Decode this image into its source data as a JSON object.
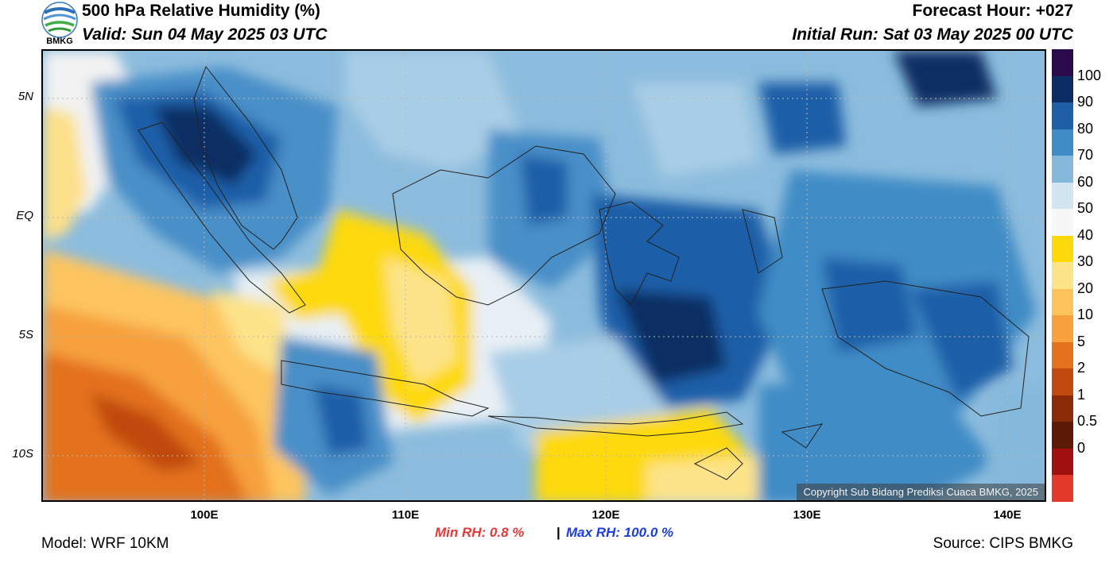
{
  "header": {
    "title": "500 hPa Relative Humidity (%)",
    "valid": "Valid: Sun 04 May 2025 03 UTC",
    "forecast_hour": "Forecast Hour: +027",
    "initial_run": "Initial Run: Sat 03 May 2025 00 UTC",
    "logo_text": "BMKG"
  },
  "map": {
    "lat_labels": [
      "5N",
      "EQ",
      "5S",
      "10S"
    ],
    "lon_labels": [
      "100E",
      "110E",
      "120E",
      "130E",
      "140E"
    ],
    "copyright": "Copyright Sub Bidang Prediksi Cuaca BMKG, 2025"
  },
  "colorbar": {
    "labels": [
      "100",
      "90",
      "80",
      "70",
      "60",
      "50",
      "40",
      "30",
      "20",
      "10",
      "5",
      "2",
      "1",
      "0.5",
      "0"
    ],
    "colors": [
      "#2a0a4a",
      "#0b2d63",
      "#1f5fa8",
      "#3f8cc6",
      "#85b9dc",
      "#d2e6f2",
      "#f7f7f7",
      "#fdd90a",
      "#fde38a",
      "#fdc45e",
      "#f7a03c",
      "#e3711e",
      "#c04a10",
      "#8a2a08",
      "#5c1a06",
      "#a01010",
      "#e23a2a"
    ]
  },
  "footer": {
    "model": "Model: WRF 10KM",
    "min_rh": "Min RH:   0.8 %",
    "separator": "|",
    "max_rh": "Max RH: 100.0 %",
    "source": "Source: CIPS BMKG"
  }
}
